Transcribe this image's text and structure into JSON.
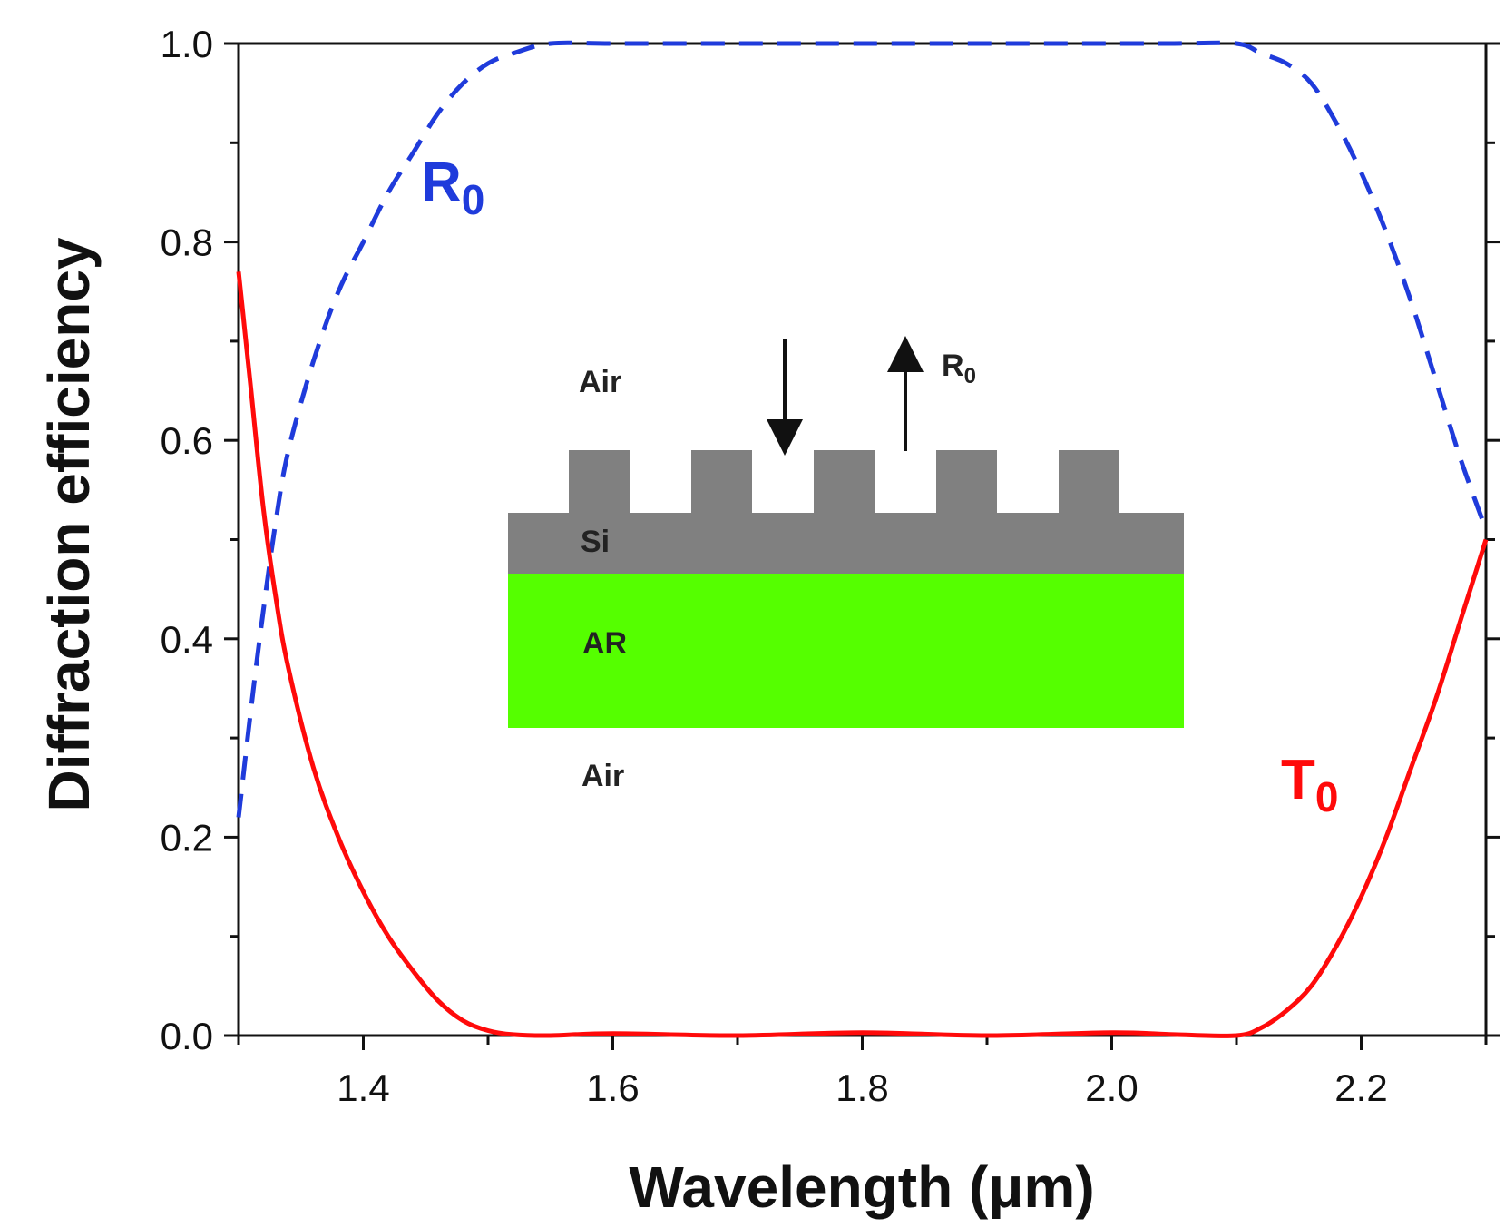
{
  "chart_data": {
    "type": "line",
    "title": "",
    "xlabel": "Wavelength (μm)",
    "ylabel": "Diffraction efficiency",
    "xlim": [
      1.3,
      2.3
    ],
    "ylim": [
      0.0,
      1.0
    ],
    "xticks": [
      1.4,
      1.6,
      1.8,
      2.0,
      2.2
    ],
    "xtick_labels": [
      "1.4",
      "1.6",
      "1.8",
      "2.0",
      "2.2"
    ],
    "yticks": [
      0.0,
      0.2,
      0.4,
      0.6,
      0.8,
      1.0
    ],
    "ytick_labels": [
      "0.0",
      "0.2",
      "0.4",
      "0.6",
      "0.8",
      "1.0"
    ],
    "grid": false,
    "series": [
      {
        "name": "R0",
        "label_main": "R",
        "label_sub": "0",
        "style": "dashed",
        "color": "#1f3bdb",
        "x": [
          1.3,
          1.31,
          1.32,
          1.33,
          1.34,
          1.36,
          1.38,
          1.4,
          1.42,
          1.44,
          1.46,
          1.48,
          1.5,
          1.52,
          1.55,
          1.6,
          1.7,
          1.8,
          1.9,
          2.0,
          2.05,
          2.1,
          2.12,
          2.14,
          2.16,
          2.18,
          2.2,
          2.22,
          2.24,
          2.26,
          2.28,
          2.3
        ],
        "y": [
          0.22,
          0.33,
          0.43,
          0.52,
          0.59,
          0.68,
          0.75,
          0.8,
          0.85,
          0.89,
          0.93,
          0.96,
          0.98,
          0.99,
          1.0,
          1.0,
          1.0,
          1.0,
          1.0,
          1.0,
          1.0,
          1.0,
          0.99,
          0.98,
          0.96,
          0.92,
          0.87,
          0.81,
          0.74,
          0.66,
          0.58,
          0.51
        ]
      },
      {
        "name": "T0",
        "label_main": "T",
        "label_sub": "0",
        "style": "solid",
        "color": "#ff0a0a",
        "x": [
          1.3,
          1.31,
          1.32,
          1.33,
          1.34,
          1.36,
          1.38,
          1.4,
          1.42,
          1.44,
          1.46,
          1.48,
          1.5,
          1.52,
          1.55,
          1.6,
          1.7,
          1.8,
          1.9,
          2.0,
          2.05,
          2.1,
          2.12,
          2.14,
          2.16,
          2.18,
          2.2,
          2.22,
          2.24,
          2.26,
          2.28,
          2.3
        ],
        "y": [
          0.77,
          0.65,
          0.53,
          0.44,
          0.37,
          0.27,
          0.2,
          0.145,
          0.1,
          0.065,
          0.035,
          0.015,
          0.005,
          0.001,
          0.0,
          0.002,
          0.0,
          0.003,
          0.0,
          0.003,
          0.001,
          0.0,
          0.008,
          0.025,
          0.05,
          0.09,
          0.14,
          0.2,
          0.27,
          0.34,
          0.42,
          0.5
        ]
      }
    ]
  },
  "inset": {
    "air_top_label": "Air",
    "air_bottom_label": "Air",
    "si_label": "Si",
    "ar_label": "AR",
    "reflection_label": "R",
    "reflection_sub": "0",
    "si_color": "#808080",
    "ar_color": "#55ff00",
    "grating_periods": 5
  }
}
